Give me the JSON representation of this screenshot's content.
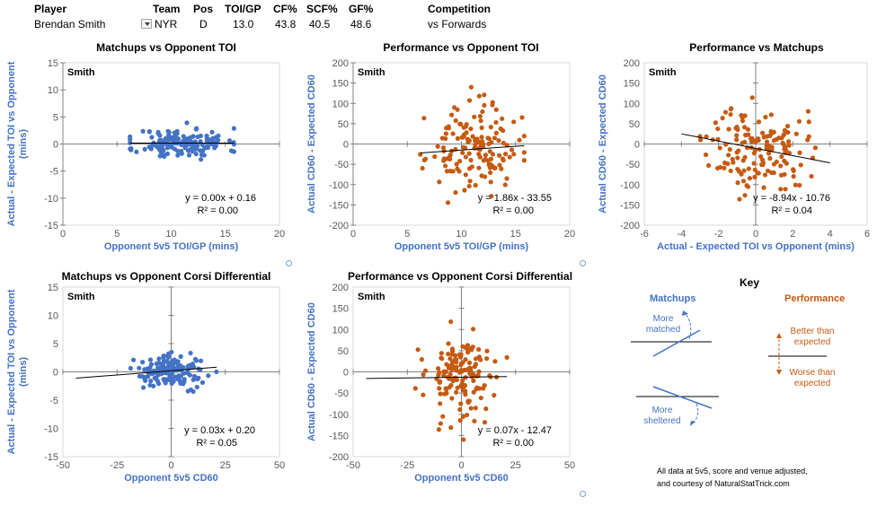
{
  "header": {
    "labels": {
      "player": "Player",
      "team": "Team",
      "pos": "Pos",
      "toi_gp": "TOI/GP",
      "cf": "CF%",
      "scf": "SCF%",
      "gf": "GF%",
      "competition": "Competition"
    },
    "values": {
      "player": "Brendan Smith",
      "team": "NYR",
      "pos": "D",
      "toi_gp": "13.0",
      "cf": "43.8",
      "scf": "40.5",
      "gf": "48.6",
      "competition": "vs Forwards"
    }
  },
  "colors": {
    "blue": "#4472c4",
    "orange": "#c55a11",
    "axis_text_blue": "#4472c4"
  },
  "chart_data": [
    {
      "id": "c1",
      "type": "scatter",
      "title": "Matchups vs Opponent TOI",
      "tag": "Smith",
      "xlabel": "Opponent 5v5 TOI/GP (mins)",
      "ylabel": "Actual - Expected TOI vs Opponent (mins)",
      "xlim": [
        0,
        20
      ],
      "ylim": [
        -15,
        15
      ],
      "xticks": [
        0,
        5,
        10,
        15,
        20
      ],
      "yticks": [
        -15,
        -10,
        -5,
        0,
        5,
        10,
        15
      ],
      "color": "blue",
      "equation": "y = 0.00x + 0.16",
      "r2": "R² = 0.00",
      "trend": {
        "slope": 0.0,
        "intercept": 0.16,
        "x0": 6.2,
        "x1": 15.8
      },
      "seed": 11,
      "n": 150,
      "xmu": 11,
      "xsd": 2.1,
      "xmin": 6.2,
      "xmax": 15.8,
      "ysd": 1.4,
      "ymin": -4,
      "ymax": 4.2
    },
    {
      "id": "c2",
      "type": "scatter",
      "title": "Performance vs Opponent TOI",
      "tag": "Smith",
      "xlabel": "Opponent 5v5 TOI/GP (mins)",
      "ylabel": "Actual CD60 - Expected CD60",
      "xlim": [
        0,
        20
      ],
      "ylim": [
        -200,
        200
      ],
      "xticks": [
        0,
        5,
        10,
        15,
        20
      ],
      "yticks": [
        -200,
        -150,
        -100,
        -50,
        0,
        50,
        100,
        150,
        200
      ],
      "color": "orange",
      "equation": "y = 1.86x - 33.55",
      "r2": "R² = 0.00",
      "trend": {
        "slope": 1.86,
        "intercept": -33.55,
        "x0": 6.2,
        "x1": 15.8
      },
      "seed": 23,
      "n": 150,
      "xmu": 11,
      "xsd": 2.1,
      "xmin": 6.2,
      "xmax": 15.8,
      "ysd": 52,
      "ymin": -180,
      "ymax": 140
    },
    {
      "id": "c3",
      "type": "scatter",
      "title": "Performance vs Matchups",
      "tag": "Smith",
      "xlabel": "Actual - Expected TOI vs Opponent (mins)",
      "ylabel": "Actual CD60 - Expected CD60",
      "xlim": [
        -6,
        6
      ],
      "ylim": [
        -200,
        200
      ],
      "xticks": [
        -6,
        -4,
        -2,
        0,
        2,
        4,
        6
      ],
      "yticks": [
        -200,
        -150,
        -100,
        -50,
        0,
        50,
        100,
        150,
        200
      ],
      "color": "orange",
      "equation": "y = -8.94x - 10.76",
      "r2": "R² = 0.04",
      "trend": {
        "slope": -8.94,
        "intercept": -10.76,
        "x0": -4.0,
        "x1": 4.0
      },
      "seed": 37,
      "n": 150,
      "xmu": 0.1,
      "xsd": 1.3,
      "xmin": -4,
      "xmax": 4.1,
      "ysd": 52,
      "ymin": -180,
      "ymax": 140
    },
    {
      "id": "c4",
      "type": "scatter",
      "title": "Matchups vs Opponent Corsi Differential",
      "tag": "Smith",
      "xlabel": "Opponent 5v5 CD60",
      "ylabel": "Actual - Expected TOI vs Opponent (mins)",
      "xlim": [
        -50,
        50
      ],
      "ylim": [
        -15,
        15
      ],
      "xticks": [
        -50,
        -25,
        0,
        25,
        50
      ],
      "yticks": [
        -15,
        -10,
        -5,
        0,
        5,
        10,
        15
      ],
      "color": "blue",
      "equation": "y = 0.03x + 0.20",
      "r2": "R² = 0.05",
      "trend": {
        "slope": 0.03,
        "intercept": 0.2,
        "x0": -44,
        "x1": 21
      },
      "seed": 41,
      "n": 150,
      "xmu": 0,
      "xsd": 8,
      "xmin": -44,
      "xmax": 21,
      "ysd": 1.4,
      "ymin": -4,
      "ymax": 4.2
    },
    {
      "id": "c5",
      "type": "scatter",
      "title": "Performance vs Opponent Corsi Differential",
      "tag": "Smith",
      "xlabel": "Opponent 5v5 CD60",
      "ylabel": "Actual CD60 - Expected CD60",
      "xlim": [
        -50,
        50
      ],
      "ylim": [
        -200,
        200
      ],
      "xticks": [
        -50,
        -25,
        0,
        25,
        50
      ],
      "yticks": [
        -200,
        -150,
        -100,
        -50,
        0,
        50,
        100,
        150,
        200
      ],
      "color": "orange",
      "equation": "y = 0.07x - 12.47",
      "r2": "R² = 0.00",
      "trend": {
        "slope": 0.07,
        "intercept": -12.47,
        "x0": -44,
        "x1": 21
      },
      "seed": 53,
      "n": 150,
      "xmu": 0,
      "xsd": 8,
      "xmin": -44,
      "xmax": 21,
      "ysd": 52,
      "ymin": -180,
      "ymax": 140
    }
  ],
  "key": {
    "title": "Key",
    "matchups": "Matchups",
    "performance": "Performance",
    "more_matched": "More matched",
    "more_sheltered": "More sheltered",
    "better": "Better than expected",
    "worse": "Worse than expected"
  },
  "footnote": {
    "line1": "All data at 5v5, score and venue adjusted,",
    "line2": "and courtesy of NaturalStatTrick.com"
  }
}
